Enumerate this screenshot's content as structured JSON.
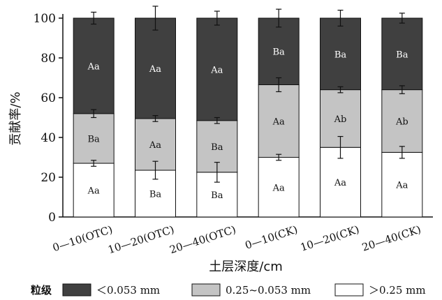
{
  "chart_data": {
    "type": "bar",
    "stacked": true,
    "title": "",
    "xlabel": "土层深度/cm",
    "ylabel": "贡献率/%",
    "ylim": [
      0,
      100
    ],
    "yticks": [
      0,
      20,
      40,
      60,
      80,
      100
    ],
    "categories": [
      "0—10(OTC)",
      "10—20(OTC)",
      "20—40(OTC)",
      "0—10(CK)",
      "10—20(CK)",
      "20—40(CK)"
    ],
    "legend_title": "粒级",
    "legend_position": "bottom",
    "series": [
      {
        "name": ">0.25 mm",
        "legend_label": "＞0.25 mm",
        "color": "#ffffff",
        "label_color": "#111111",
        "values": [
          27,
          23.5,
          22.5,
          30,
          35,
          32.5
        ],
        "errors": [
          1.5,
          4.5,
          5,
          1.5,
          5.5,
          3
        ],
        "labels": [
          "Aa",
          "Ba",
          "Ba",
          "Aa",
          "Aa",
          "Aa"
        ]
      },
      {
        "name": "0.25~0.053 mm",
        "legend_label": "0.25~0.053 mm",
        "color": "#c4c4c4",
        "label_color": "#111111",
        "values": [
          25,
          26,
          26,
          36.5,
          29,
          31.5
        ],
        "errors": [
          2,
          1.5,
          1.5,
          3.5,
          1.5,
          2
        ],
        "labels": [
          "Ba",
          "Aa",
          "Ba",
          "Aa",
          "Ab",
          "Ab"
        ]
      },
      {
        "name": "<0.053 mm",
        "legend_label": "＜0.053 mm",
        "color": "#404040",
        "label_color": "#ffffff",
        "values": [
          48,
          50.5,
          51.5,
          33.5,
          36,
          36
        ],
        "errors": [
          3,
          6,
          3.5,
          4.5,
          4,
          2.5
        ],
        "labels": [
          "Aa",
          "Aa",
          "Aa",
          "Ba",
          "Ba",
          "Ba"
        ]
      }
    ]
  }
}
